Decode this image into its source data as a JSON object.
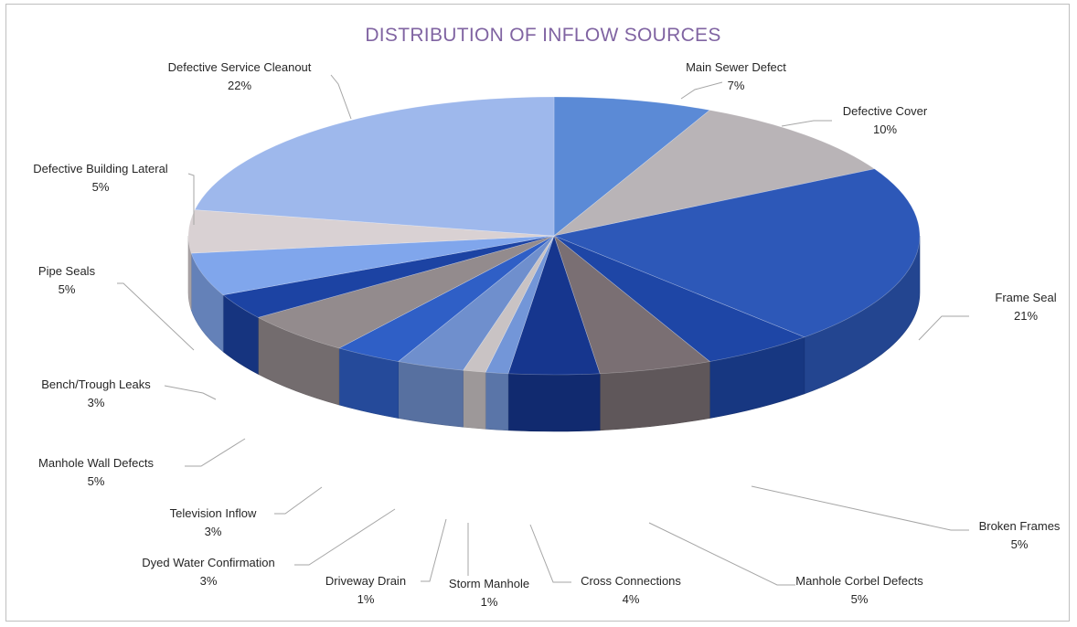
{
  "chart_data": {
    "type": "pie",
    "title": "DISTRIBUTION OF INFLOW SOURCES",
    "style": "3d-pie-with-leader-lines",
    "slices": [
      {
        "name": "Main Sewer Defect",
        "value": 7,
        "label": "7%",
        "color": "#5b8ad6"
      },
      {
        "name": "Defective Cover",
        "value": 10,
        "label": "10%",
        "color": "#b9b4b7"
      },
      {
        "name": "Frame Seal",
        "value": 21,
        "label": "21%",
        "color": "#2d58b8"
      },
      {
        "name": "Broken Frames",
        "value": 5,
        "label": "5%",
        "color": "#1e46a6"
      },
      {
        "name": "Manhole Corbel Defects",
        "value": 5,
        "label": "5%",
        "color": "#7a6f73"
      },
      {
        "name": "Cross Connections",
        "value": 4,
        "label": "4%",
        "color": "#16368e"
      },
      {
        "name": "Storm Manhole",
        "value": 1,
        "label": "1%",
        "color": "#7396d8"
      },
      {
        "name": "Driveway Drain",
        "value": 1,
        "label": "1%",
        "color": "#c9c3c4"
      },
      {
        "name": "Dyed Water Confirmation",
        "value": 3,
        "label": "3%",
        "color": "#6f8fcd"
      },
      {
        "name": "Television Inflow",
        "value": 3,
        "label": "3%",
        "color": "#2f5fc6"
      },
      {
        "name": "Manhole Wall Defects",
        "value": 5,
        "label": "5%",
        "color": "#938b8d"
      },
      {
        "name": "Bench/Trough Leaks",
        "value": 3,
        "label": "3%",
        "color": "#1c43a3"
      },
      {
        "name": "Pipe Seals",
        "value": 5,
        "label": "5%",
        "color": "#80a6ec"
      },
      {
        "name": "Defective Building Lateral",
        "value": 5,
        "label": "5%",
        "color": "#d9d1d3"
      },
      {
        "name": "Defective Service Cleanout",
        "value": 22,
        "label": "22%",
        "color": "#9eb8ec"
      }
    ]
  }
}
